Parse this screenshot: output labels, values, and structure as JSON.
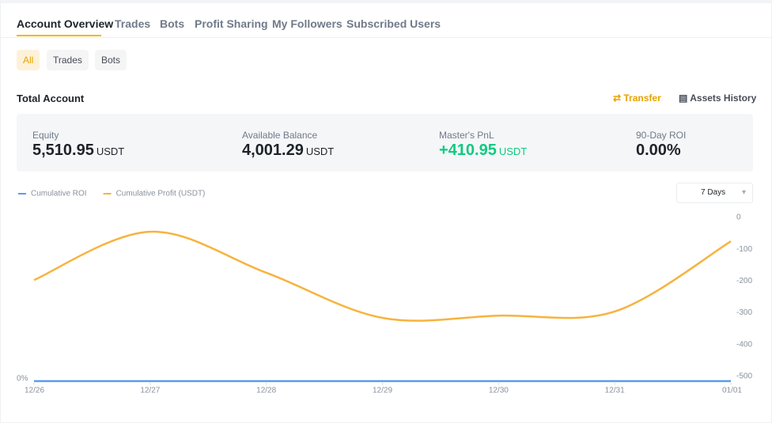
{
  "tabs": [
    "Account Overview",
    "Trades",
    "Bots",
    "Profit Sharing",
    "My Followers",
    "Subscribed Users"
  ],
  "filters": [
    "All",
    "Trades",
    "Bots"
  ],
  "section": {
    "title": "Total Account",
    "transfer": "Transfer",
    "assets_history": "Assets History"
  },
  "stats": [
    {
      "label": "Equity",
      "value": "5,510.95",
      "unit": "USDT"
    },
    {
      "label": "Available Balance",
      "value": "4,001.29",
      "unit": "USDT"
    },
    {
      "label": "Master's PnL",
      "value": "+410.95",
      "unit": "USDT"
    },
    {
      "label": "90-Day ROI",
      "value": "0.00%"
    }
  ],
  "period": "7 Days",
  "chart_data": {
    "type": "line",
    "categories": [
      "12/26",
      "12/27",
      "12/28",
      "12/29",
      "12/30",
      "12/31",
      "01/01"
    ],
    "series": [
      {
        "name": "Cumulative ROI",
        "color": "#5a9cf0",
        "values": [
          0,
          0,
          0,
          0,
          0,
          0,
          0
        ]
      },
      {
        "name": "Cumulative Profit (USDT)",
        "color": "#f7b33d",
        "axis": "y2",
        "values": [
          -197,
          -45,
          -174,
          -316,
          -309,
          -296,
          -75
        ]
      }
    ],
    "ylim": [
      0,
      100
    ],
    "yticks": [
      {
        "value": 0,
        "label": "0%"
      }
    ],
    "y2lim": [
      -500,
      0
    ],
    "y2ticks": [
      0,
      -100,
      -200,
      -300,
      -400,
      -500
    ]
  }
}
